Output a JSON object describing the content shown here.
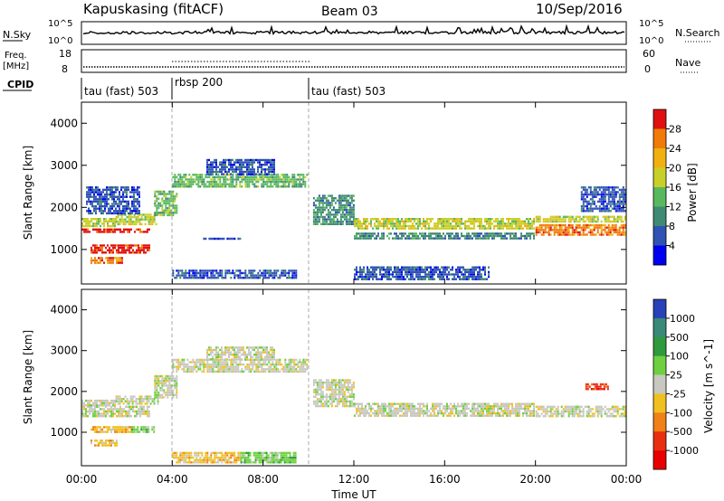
{
  "header": {
    "title": "Kapuskasing (fitACF)",
    "beam": "Beam 03",
    "date": "10/Sep/2016"
  },
  "nsky_panel": {
    "label": "N.Sky",
    "left_ticks": [
      "10^5",
      "10^0"
    ],
    "right_label": "N.Search",
    "right_ticks": [
      "10^5",
      "10^0"
    ]
  },
  "freq_panel": {
    "label_line1": "Freq.",
    "label_line2": "[MHz]",
    "left_ticks": [
      "18",
      "8"
    ],
    "right_label": "Nave",
    "right_ticks": [
      "60",
      "0"
    ]
  },
  "cpid_panel": {
    "label": "CPID",
    "segments": [
      {
        "label": "tau (fast) 503",
        "start_h": 0,
        "end_h": 4
      },
      {
        "label": "rbsp 200",
        "start_h": 4,
        "end_h": 10
      },
      {
        "label": "tau (fast) 503",
        "start_h": 10,
        "end_h": 24
      }
    ]
  },
  "chart_data": [
    {
      "type": "heatmap",
      "title": "",
      "ylabel": "Slant Range [km]",
      "xlim": [
        0,
        24
      ],
      "ylim": [
        180,
        4500
      ],
      "y_ticks": [
        1000,
        2000,
        3000,
        4000
      ],
      "x_tick_labels": [
        "00:00",
        "04:00",
        "08:00",
        "12:00",
        "16:00",
        "20:00",
        "00:00"
      ],
      "colorbar_label": "Power [dB]",
      "colorbar_ticks": [
        "4",
        "8",
        "12",
        "16",
        "20",
        "24",
        "28"
      ],
      "colorbar_colors": [
        "#0000f0",
        "#2f52b4",
        "#3f8a72",
        "#58b85e",
        "#c8d028",
        "#f0b010",
        "#f07a0a",
        "#e01010"
      ],
      "bands": [
        {
          "t0": 0,
          "t1": 3.0,
          "r0": 1380,
          "r1": 1500,
          "level": 7
        },
        {
          "t0": 0,
          "t1": 1.5,
          "r0": 1500,
          "r1": 1750,
          "level": 4
        },
        {
          "t0": 1.5,
          "t1": 3.4,
          "r0": 1550,
          "r1": 1850,
          "level": 4
        },
        {
          "t0": 0.2,
          "t1": 2.6,
          "r0": 1850,
          "r1": 2500,
          "level": 1
        },
        {
          "t0": 0.4,
          "t1": 3.0,
          "r0": 900,
          "r1": 1120,
          "level": 7
        },
        {
          "t0": 0.4,
          "t1": 1.8,
          "r0": 650,
          "r1": 820,
          "level": 6
        },
        {
          "t0": 3.2,
          "t1": 4.2,
          "r0": 1800,
          "r1": 2400,
          "level": 3
        },
        {
          "t0": 4.0,
          "t1": 10.0,
          "r0": 2450,
          "r1": 2800,
          "level": 3
        },
        {
          "t0": 5.5,
          "t1": 8.5,
          "r0": 2750,
          "r1": 3150,
          "level": 1
        },
        {
          "t0": 4.0,
          "t1": 9.5,
          "r0": 300,
          "r1": 520,
          "level": 1
        },
        {
          "t0": 5.2,
          "t1": 7.0,
          "r0": 1220,
          "r1": 1280,
          "level": 1
        },
        {
          "t0": 10.2,
          "t1": 12.0,
          "r0": 1600,
          "r1": 2300,
          "level": 2
        },
        {
          "t0": 12.0,
          "t1": 20.0,
          "r0": 1450,
          "r1": 1750,
          "level": 4
        },
        {
          "t0": 12.0,
          "t1": 20.0,
          "r0": 1250,
          "r1": 1400,
          "level": 2
        },
        {
          "t0": 20.0,
          "t1": 24.0,
          "r0": 1300,
          "r1": 1600,
          "level": 6
        },
        {
          "t0": 20.0,
          "t1": 24.0,
          "r0": 1650,
          "r1": 1800,
          "level": 4
        },
        {
          "t0": 22.0,
          "t1": 24.0,
          "r0": 1900,
          "r1": 2500,
          "level": 1
        },
        {
          "t0": 12.0,
          "t1": 18.0,
          "r0": 250,
          "r1": 600,
          "level": 1
        }
      ]
    },
    {
      "type": "heatmap",
      "title": "",
      "ylabel": "Slant Range [km]",
      "xlabel": "Time UT",
      "xlim": [
        0,
        24
      ],
      "ylim": [
        180,
        4500
      ],
      "y_ticks": [
        1000,
        2000,
        3000,
        4000
      ],
      "x_tick_labels": [
        "00:00",
        "04:00",
        "08:00",
        "12:00",
        "16:00",
        "20:00",
        "00:00"
      ],
      "colorbar_label": "Velocity [m s^-1]",
      "colorbar_ticks": [
        "1000",
        "500",
        "100",
        "25",
        "-25",
        "-100",
        "-500",
        "-1000"
      ],
      "colorbar_colors": [
        "#2840b8",
        "#3a8878",
        "#2e9a3e",
        "#6ed040",
        "#c8c8c0",
        "#f0c020",
        "#f08018",
        "#e83010",
        "#e80000"
      ],
      "bands": [
        {
          "t0": 0,
          "t1": 3.0,
          "r0": 1380,
          "r1": 1650,
          "level": 4
        },
        {
          "t0": 0,
          "t1": 1.5,
          "r0": 1650,
          "r1": 1800,
          "level": 4
        },
        {
          "t0": 1.5,
          "t1": 3.4,
          "r0": 1650,
          "r1": 1900,
          "level": 4
        },
        {
          "t0": 0.4,
          "t1": 2.2,
          "r0": 950,
          "r1": 1150,
          "level": 5
        },
        {
          "t0": 0.4,
          "t1": 1.6,
          "r0": 650,
          "r1": 820,
          "level": 5
        },
        {
          "t0": 2.2,
          "t1": 3.2,
          "r0": 950,
          "r1": 1150,
          "level": 3
        },
        {
          "t0": 3.2,
          "t1": 4.2,
          "r0": 1800,
          "r1": 2400,
          "level": 4
        },
        {
          "t0": 4.0,
          "t1": 10.0,
          "r0": 2450,
          "r1": 2800,
          "level": 4
        },
        {
          "t0": 5.5,
          "t1": 8.5,
          "r0": 2750,
          "r1": 3100,
          "level": 4
        },
        {
          "t0": 4.0,
          "t1": 7.0,
          "r0": 250,
          "r1": 520,
          "level": 5
        },
        {
          "t0": 7.0,
          "t1": 9.5,
          "r0": 250,
          "r1": 520,
          "level": 3
        },
        {
          "t0": 10.2,
          "t1": 12.0,
          "r0": 1600,
          "r1": 2300,
          "level": 4
        },
        {
          "t0": 12.0,
          "t1": 20.0,
          "r0": 1380,
          "r1": 1720,
          "level": 4
        },
        {
          "t0": 20.0,
          "t1": 24.0,
          "r0": 1350,
          "r1": 1650,
          "level": 4
        },
        {
          "t0": 22.2,
          "t1": 23.2,
          "r0": 2050,
          "r1": 2200,
          "level": 7
        }
      ]
    }
  ]
}
